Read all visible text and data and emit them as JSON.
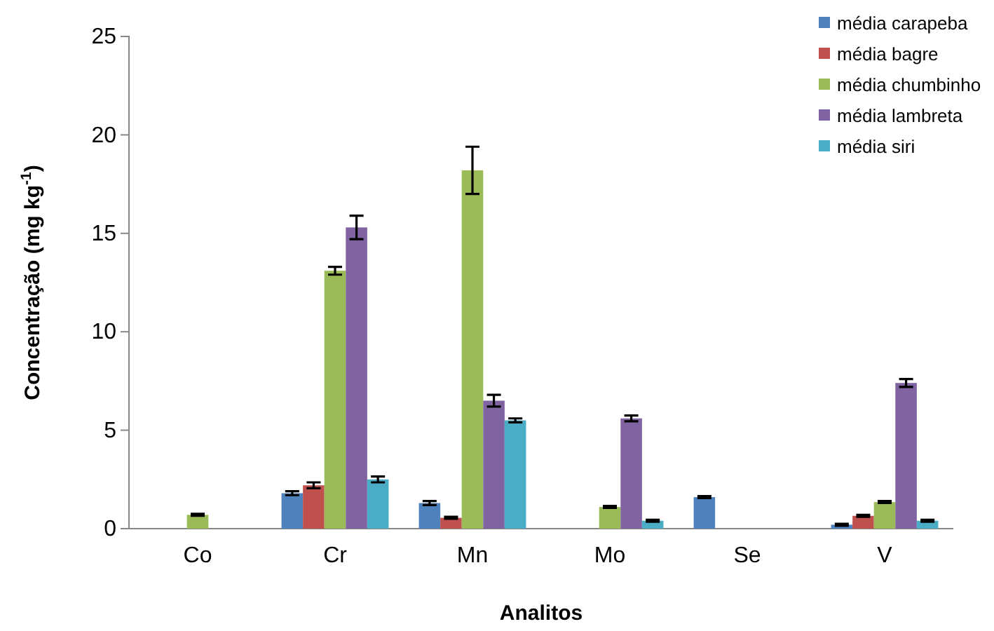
{
  "chart_data": {
    "type": "bar",
    "xlabel": "Analitos",
    "ylabel": "Concentração (mg kg$^{-1}$)",
    "categories": [
      "Co",
      "Cr",
      "Mn",
      "Mo",
      "Se",
      "V"
    ],
    "series": [
      {
        "name": "média carapeba",
        "color": "#4f81bd",
        "values": [
          0,
          1.8,
          1.3,
          0,
          1.6,
          0.2
        ],
        "errors": [
          null,
          0.1,
          0.1,
          null,
          0.05,
          0.05
        ]
      },
      {
        "name": "média bagre",
        "color": "#c0504d",
        "values": [
          0,
          2.2,
          0.55,
          0,
          0,
          0.65
        ],
        "errors": [
          null,
          0.15,
          0.05,
          null,
          null,
          0.05
        ]
      },
      {
        "name": "média chumbinho",
        "color": "#9bbb59",
        "values": [
          0.7,
          13.1,
          18.2,
          1.1,
          0,
          1.35
        ],
        "errors": [
          0.05,
          0.2,
          1.2,
          0.05,
          null,
          0.05
        ]
      },
      {
        "name": "média lambreta",
        "color": "#8064a2",
        "values": [
          0,
          15.3,
          6.5,
          5.6,
          0,
          7.4
        ],
        "errors": [
          null,
          0.6,
          0.3,
          0.15,
          null,
          0.2
        ]
      },
      {
        "name": "média siri",
        "color": "#4bacc6",
        "values": [
          0,
          2.5,
          5.5,
          0.4,
          0,
          0.4
        ],
        "errors": [
          null,
          0.15,
          0.1,
          0.05,
          null,
          0.05
        ]
      }
    ],
    "ylim": [
      0,
      25
    ],
    "yticks": [
      0,
      5,
      10,
      15,
      20,
      25
    ],
    "grid": false,
    "legend": "top right"
  }
}
